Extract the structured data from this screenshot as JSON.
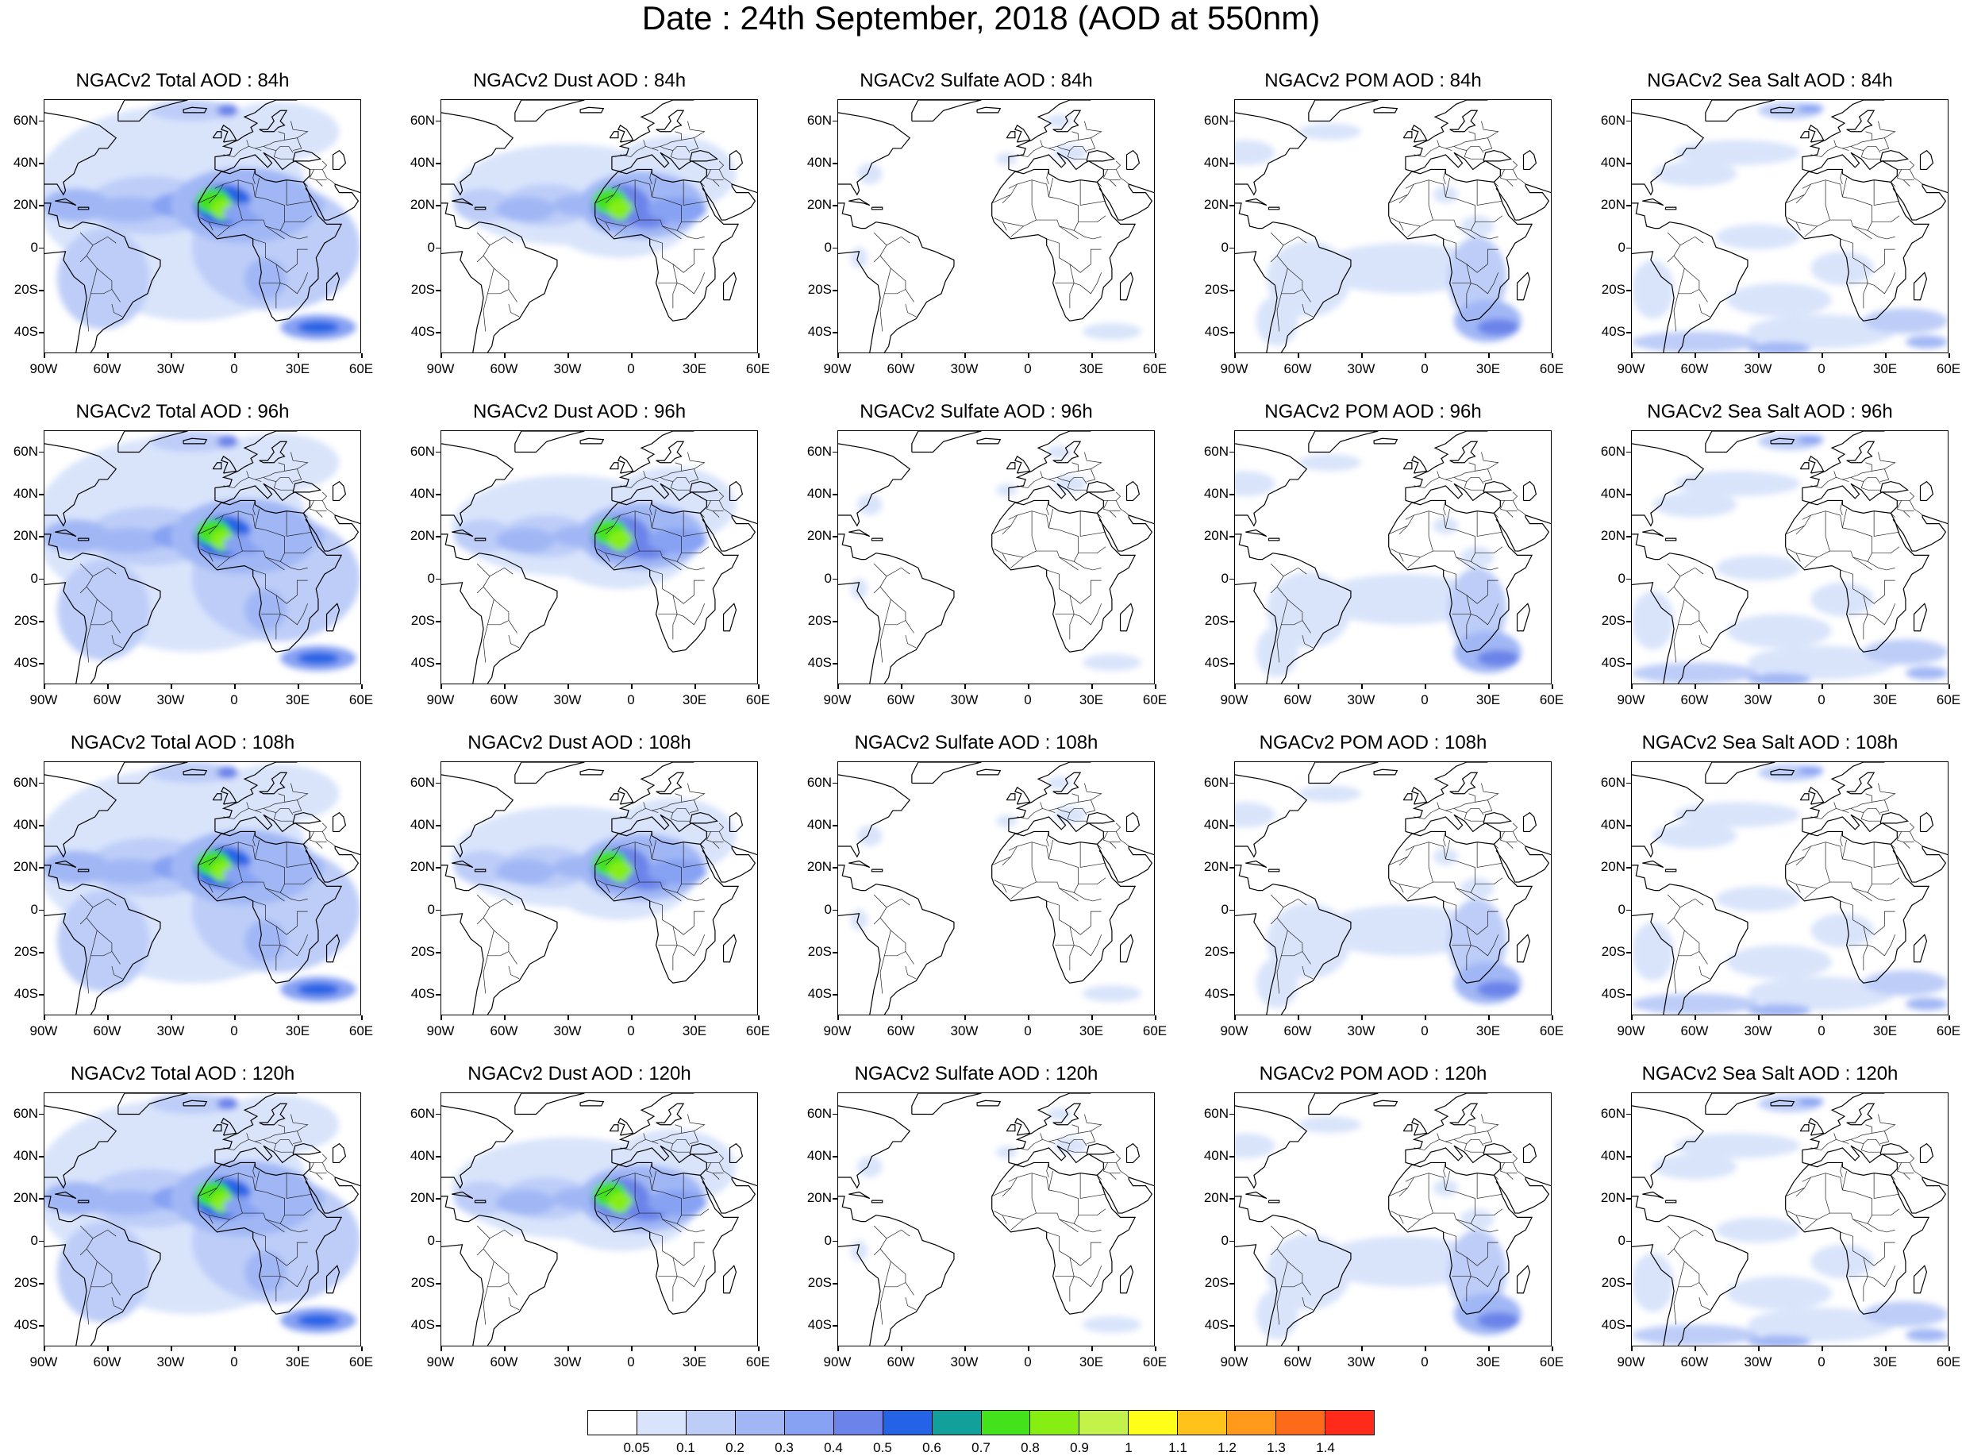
{
  "title": "Date : 24th September, 2018 (AOD at 550nm)",
  "lat_labels": [
    "60N",
    "40N",
    "20N",
    "0",
    "20S",
    "40S"
  ],
  "lon_labels": [
    "90W",
    "60W",
    "30W",
    "0",
    "30E",
    "60E"
  ],
  "colorbar": {
    "labels": [
      "0.05",
      "0.1",
      "0.2",
      "0.3",
      "0.4",
      "0.5",
      "0.6",
      "0.7",
      "0.8",
      "0.9",
      "1",
      "1.1",
      "1.2",
      "1.3",
      "1.4"
    ],
    "colors": [
      "#ffffff",
      "#d9e4fb",
      "#bdcdf8",
      "#a1b7f5",
      "#87a2f3",
      "#6c84ea",
      "#2563e6",
      "#12a09a",
      "#43e21a",
      "#86ee12",
      "#c3f24a",
      "#ffff1a",
      "#ffc21a",
      "#ff9a1a",
      "#ff6a1a",
      "#ff2a1a"
    ]
  },
  "panels": [
    {
      "title": "NGACv2 Total AOD : 84h",
      "species": "total"
    },
    {
      "title": "NGACv2 Dust AOD : 84h",
      "species": "dust"
    },
    {
      "title": "NGACv2 Sulfate AOD : 84h",
      "species": "sulfate"
    },
    {
      "title": "NGACv2 POM AOD : 84h",
      "species": "pom"
    },
    {
      "title": "NGACv2 Sea Salt AOD : 84h",
      "species": "seasalt"
    },
    {
      "title": "NGACv2 Total AOD : 96h",
      "species": "total"
    },
    {
      "title": "NGACv2 Dust AOD : 96h",
      "species": "dust"
    },
    {
      "title": "NGACv2 Sulfate AOD : 96h",
      "species": "sulfate"
    },
    {
      "title": "NGACv2 POM AOD : 96h",
      "species": "pom"
    },
    {
      "title": "NGACv2 Sea Salt AOD : 96h",
      "species": "seasalt"
    },
    {
      "title": "NGACv2 Total AOD : 108h",
      "species": "total"
    },
    {
      "title": "NGACv2 Dust AOD : 108h",
      "species": "dust"
    },
    {
      "title": "NGACv2 Sulfate AOD : 108h",
      "species": "sulfate"
    },
    {
      "title": "NGACv2 POM AOD : 108h",
      "species": "pom"
    },
    {
      "title": "NGACv2 Sea Salt AOD : 108h",
      "species": "seasalt"
    },
    {
      "title": "NGACv2 Total AOD : 120h",
      "species": "total"
    },
    {
      "title": "NGACv2 Dust AOD : 120h",
      "species": "dust"
    },
    {
      "title": "NGACv2 Sulfate AOD : 120h",
      "species": "sulfate"
    },
    {
      "title": "NGACv2 POM AOD : 120h",
      "species": "pom"
    },
    {
      "title": "NGACv2 Sea Salt  AOD : 120h",
      "species": "seasalt"
    }
  ]
}
